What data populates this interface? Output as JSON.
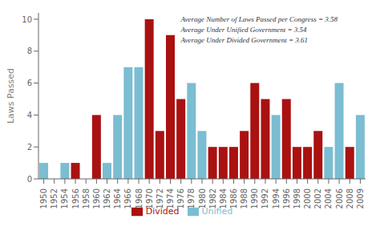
{
  "chart_data": {
    "type": "bar",
    "categories": [
      "1950",
      "1952",
      "1954",
      "1956",
      "1958",
      "1960",
      "1962",
      "1964",
      "1966",
      "1968",
      "1970",
      "1972",
      "1974",
      "1976",
      "1978",
      "1980",
      "1982",
      "1984",
      "1986",
      "1988",
      "1990",
      "1992",
      "1994",
      "1996",
      "1998",
      "2000",
      "2002",
      "2004",
      "2006",
      "2008",
      "2009"
    ],
    "series": [
      {
        "name": "Unified",
        "color": "#7bbdd1",
        "values": [
          1,
          null,
          1,
          null,
          null,
          null,
          1,
          4,
          7,
          7,
          null,
          null,
          null,
          null,
          6,
          3,
          null,
          null,
          null,
          null,
          null,
          null,
          4,
          null,
          null,
          null,
          null,
          2,
          6,
          null,
          4
        ]
      },
      {
        "name": "Divided",
        "color": "#aa1111",
        "values": [
          null,
          null,
          null,
          1,
          null,
          4,
          null,
          null,
          null,
          null,
          10,
          3,
          9,
          5,
          null,
          null,
          2,
          2,
          2,
          3,
          6,
          5,
          null,
          5,
          2,
          2,
          3,
          null,
          null,
          2,
          null
        ]
      }
    ],
    "stacked": true,
    "ylabel": "Laws Passed",
    "ylim": [
      0,
      10.4
    ],
    "yticks": [
      0,
      2,
      4,
      6,
      8,
      10
    ],
    "annotations": [
      "Average Number of Laws Passed per Congress = 3.58",
      "Average Under Unified Government = 3.54",
      "Average Under Divided Government = 3.61"
    ],
    "legend": "bottom",
    "grid": false
  }
}
